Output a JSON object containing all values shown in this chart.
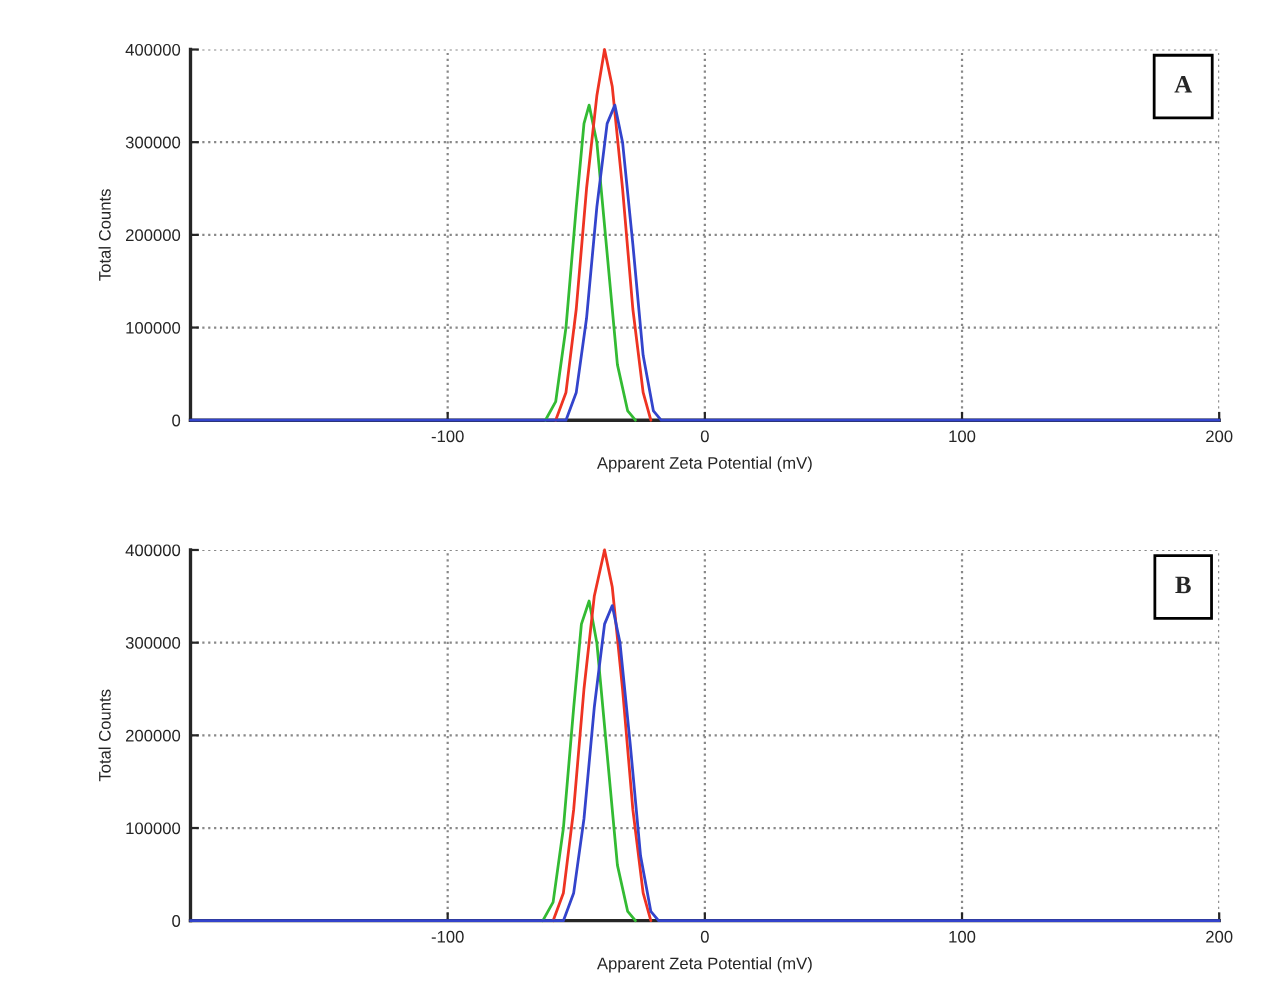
{
  "chart_data": [
    {
      "type": "line",
      "xlabel": "Apparent Zeta Potential (mV)",
      "ylabel": "Total Counts",
      "annotations": [
        "A"
      ],
      "xlim": [
        -200,
        200
      ],
      "xticks": [
        -100,
        0,
        100,
        200
      ],
      "ylim": [
        0,
        400000
      ],
      "yticks": [
        0,
        100000,
        200000,
        300000,
        400000
      ],
      "grid": true,
      "legend": false,
      "series": [
        {
          "color": "#33bb33",
          "x": [
            -62,
            -58,
            -54,
            -50,
            -47,
            -45,
            -42,
            -38,
            -34,
            -30,
            -27
          ],
          "values": [
            0,
            20000,
            100000,
            230000,
            320000,
            340000,
            300000,
            180000,
            60000,
            10000,
            0
          ]
        },
        {
          "color": "#ee3322",
          "x": [
            -58,
            -54,
            -50,
            -46,
            -42,
            -39,
            -36,
            -32,
            -28,
            -24,
            -21
          ],
          "values": [
            0,
            30000,
            120000,
            250000,
            350000,
            400000,
            360000,
            250000,
            120000,
            30000,
            0
          ]
        },
        {
          "color": "#3344cc",
          "x": [
            -200,
            -54,
            -50,
            -46,
            -42,
            -38,
            -35,
            -32,
            -28,
            -24,
            -20,
            -17,
            200
          ],
          "values": [
            0,
            0,
            30000,
            110000,
            230000,
            320000,
            340000,
            300000,
            190000,
            70000,
            10000,
            0,
            0
          ]
        }
      ]
    },
    {
      "type": "line",
      "xlabel": "Apparent Zeta Potential (mV)",
      "ylabel": "Total Counts",
      "annotations": [
        "B"
      ],
      "xlim": [
        -200,
        200
      ],
      "xticks": [
        -100,
        0,
        100,
        200
      ],
      "ylim": [
        0,
        400000
      ],
      "yticks": [
        0,
        100000,
        200000,
        300000,
        400000
      ],
      "grid": true,
      "legend": false,
      "series": [
        {
          "color": "#33bb33",
          "x": [
            -63,
            -59,
            -55,
            -51,
            -48,
            -45,
            -42,
            -38,
            -34,
            -30,
            -27
          ],
          "values": [
            0,
            20000,
            100000,
            230000,
            320000,
            345000,
            300000,
            180000,
            60000,
            10000,
            0
          ]
        },
        {
          "color": "#ee3322",
          "x": [
            -59,
            -55,
            -51,
            -47,
            -43,
            -39,
            -36,
            -32,
            -28,
            -24,
            -21
          ],
          "values": [
            0,
            30000,
            120000,
            250000,
            350000,
            400000,
            360000,
            250000,
            120000,
            30000,
            0
          ]
        },
        {
          "color": "#3344cc",
          "x": [
            -200,
            -55,
            -51,
            -47,
            -43,
            -39,
            -36,
            -33,
            -29,
            -25,
            -21,
            -18,
            200
          ],
          "values": [
            0,
            0,
            30000,
            110000,
            230000,
            320000,
            340000,
            300000,
            190000,
            70000,
            10000,
            0,
            0
          ]
        }
      ]
    }
  ]
}
